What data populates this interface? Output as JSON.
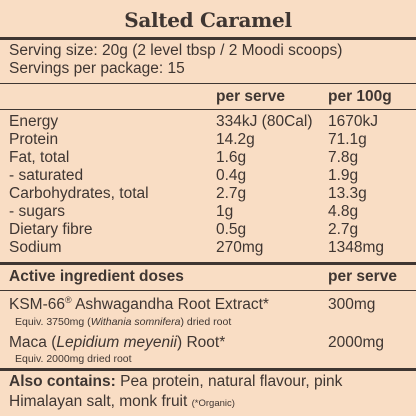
{
  "title": "Salted Caramel",
  "serving": {
    "size": "Serving size: 20g (2 level tbsp / 2 Moodi scoops)",
    "per_package": "Servings per package: 15"
  },
  "nutrition": {
    "headers": [
      "",
      "per serve",
      "per 100g"
    ],
    "rows": [
      {
        "name": "Energy",
        "per_serve": "334kJ (80Cal)",
        "per_100g": "1670kJ"
      },
      {
        "name": "Protein",
        "per_serve": "14.2g",
        "per_100g": "71.1g"
      },
      {
        "name": "Fat, total",
        "per_serve": "1.6g",
        "per_100g": "7.8g"
      },
      {
        "name": "- saturated",
        "per_serve": "0.4g",
        "per_100g": "1.9g"
      },
      {
        "name": "Carbohydrates, total",
        "per_serve": "2.7g",
        "per_100g": "13.3g"
      },
      {
        "name": "- sugars",
        "per_serve": "1g",
        "per_100g": "4.8g"
      },
      {
        "name": "Dietary fibre",
        "per_serve": "0.5g",
        "per_100g": "2.7g"
      },
      {
        "name": "Sodium",
        "per_serve": "270mg",
        "per_100g": "1348mg"
      }
    ]
  },
  "active": {
    "heading": "Active ingredient doses",
    "heading_col": "per serve",
    "items": [
      {
        "name_a": "KSM-66",
        "mark": "®",
        "name_b": " Ashwagandha Root Extract*",
        "dose": "300mg",
        "equiv_a": "Equiv. 3750mg (",
        "equiv_latin": "Withania somnifera",
        "equiv_b": ") dried root"
      },
      {
        "name_a": "Maca (",
        "latin": "Lepidium meyenii",
        "name_b": ") Root*",
        "dose": "2000mg",
        "equiv": "Equiv. 2000mg dried root"
      }
    ]
  },
  "also": {
    "label": "Also contains:",
    "text": " Pea protein, natural flavour, pink Himalayan salt, monk fruit ",
    "note": "(*Organic)"
  }
}
